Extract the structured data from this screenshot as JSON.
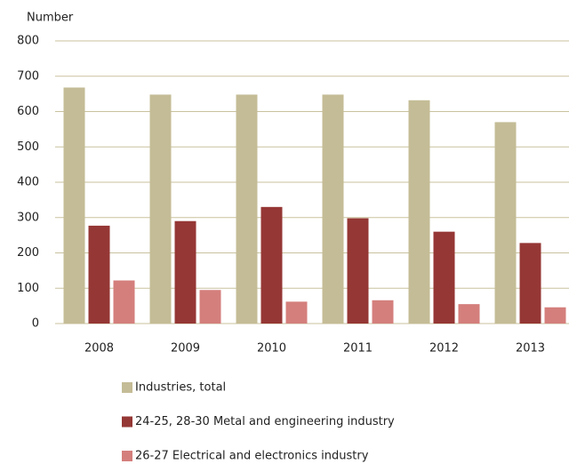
{
  "chart_data": {
    "type": "bar",
    "y_label": "Number",
    "categories": [
      "2008",
      "2009",
      "2010",
      "2011",
      "2012",
      "2013"
    ],
    "series": [
      {
        "name": "Industries, total",
        "color": "#c4bc96",
        "values": [
          668,
          648,
          648,
          648,
          632,
          570
        ]
      },
      {
        "name": "24-25, 28-30 Metal and engineering industry",
        "color": "#953735",
        "values": [
          277,
          290,
          330,
          298,
          260,
          228
        ]
      },
      {
        "name": "26-27 Electrical and electronics industry",
        "color": "#d47f7c",
        "values": [
          122,
          95,
          62,
          66,
          55,
          46
        ]
      }
    ],
    "ylim": [
      0,
      800
    ],
    "yticks": [
      0,
      100,
      200,
      300,
      400,
      500,
      600,
      700,
      800
    ],
    "grid": true
  }
}
